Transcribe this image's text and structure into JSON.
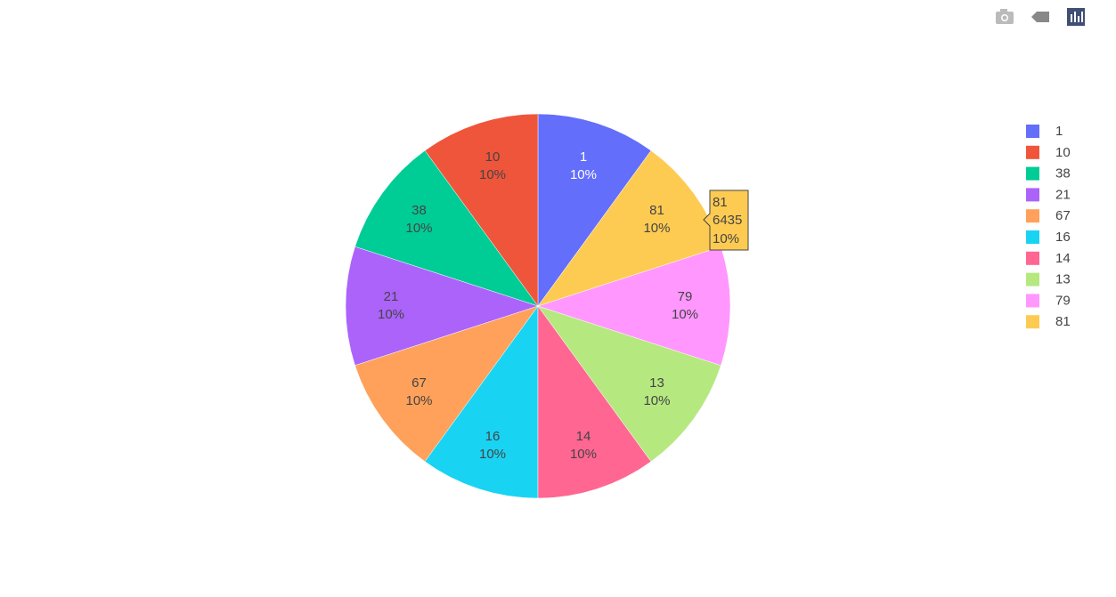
{
  "chart_data": {
    "type": "pie",
    "categories": [
      "1",
      "10",
      "38",
      "21",
      "67",
      "16",
      "14",
      "13",
      "79",
      "81"
    ],
    "values": [
      6435,
      6435,
      6435,
      6435,
      6435,
      6435,
      6435,
      6435,
      6435,
      6435
    ],
    "percent_labels": [
      "10%",
      "10%",
      "10%",
      "10%",
      "10%",
      "10%",
      "10%",
      "10%",
      "10%",
      "10%"
    ],
    "colors": [
      "#636efa",
      "#ef553b",
      "#00cc96",
      "#ab63fa",
      "#ffa15a",
      "#19d3f3",
      "#ff6692",
      "#b6e880",
      "#ff97ff",
      "#fecb52"
    ],
    "hover_index": 9,
    "legend": "right"
  }
}
